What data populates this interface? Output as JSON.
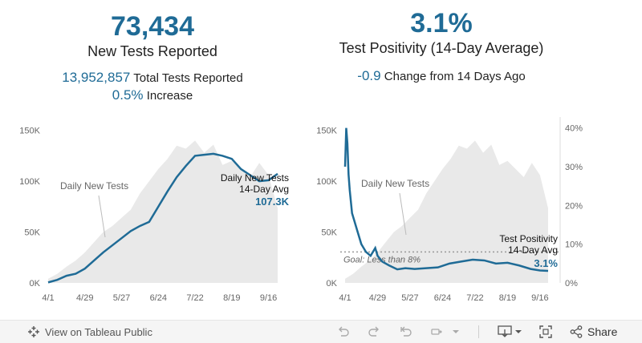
{
  "left_panel": {
    "big_number": "73,434",
    "title": "New Tests Reported",
    "total_value": "13,952,857",
    "total_label": "Total Tests Reported",
    "increase_value": "0.5%",
    "increase_label": "Increase"
  },
  "right_panel": {
    "big_number": "3.1%",
    "title": "Test Positivity (14-Day Average)",
    "change_value": "-0.9",
    "change_label": "Change from 14 Days Ago"
  },
  "chart_data": [
    {
      "type": "area",
      "x_ticks": [
        "4/1",
        "4/29",
        "5/27",
        "6/24",
        "7/22",
        "8/19",
        "9/16"
      ],
      "y_ticks": [
        "0K",
        "50K",
        "100K",
        "150K"
      ],
      "ylim": [
        0,
        160000
      ],
      "annotation": "Daily New Tests",
      "avg_label_line1": "Daily New Tests",
      "avg_label_line2": "14-Day Avg",
      "avg_value_label": "107.3K",
      "series": [
        {
          "name": "Daily New Tests",
          "x": [
            0,
            7,
            14,
            21,
            28,
            35,
            42,
            49,
            56,
            63,
            70,
            77,
            84,
            91,
            98,
            105,
            112,
            119,
            126,
            133,
            140,
            147,
            154,
            161,
            168,
            175
          ],
          "values": [
            4000,
            9000,
            16000,
            22000,
            30000,
            40000,
            50000,
            56000,
            64000,
            72000,
            88000,
            100000,
            112000,
            122000,
            135000,
            132000,
            140000,
            128000,
            136000,
            116000,
            120000,
            112000,
            104000,
            118000,
            106000,
            73434
          ]
        },
        {
          "name": "14-Day Avg",
          "x": [
            0,
            7,
            14,
            21,
            28,
            35,
            42,
            49,
            56,
            63,
            70,
            77,
            84,
            91,
            98,
            105,
            112,
            119,
            126,
            133,
            140,
            147,
            154,
            161,
            168,
            175
          ],
          "values": [
            500,
            3000,
            7000,
            9000,
            14000,
            22000,
            30000,
            37000,
            44000,
            51000,
            56000,
            60000,
            75000,
            90000,
            104000,
            115000,
            125000,
            126000,
            127000,
            125000,
            122000,
            112000,
            106000,
            100000,
            101000,
            107300
          ]
        }
      ]
    },
    {
      "type": "area",
      "x_ticks": [
        "4/1",
        "4/29",
        "5/27",
        "6/24",
        "7/22",
        "8/19",
        "9/16"
      ],
      "y_ticks": [
        "0K",
        "50K",
        "100K",
        "150K"
      ],
      "y2_ticks": [
        "0%",
        "10%",
        "20%",
        "30%",
        "40%"
      ],
      "ylim": [
        0,
        160000
      ],
      "y2lim": [
        0,
        42
      ],
      "annotation": "Daily New Tests",
      "goal_label": "Goal: Less than 8%",
      "goal_value": 8,
      "avg_label_line1": "Test Positivity",
      "avg_label_line2": "14-Day Avg",
      "avg_value_label": "3.1%",
      "series": [
        {
          "name": "Daily New Tests",
          "x": [
            0,
            7,
            14,
            21,
            28,
            35,
            42,
            49,
            56,
            63,
            70,
            77,
            84,
            91,
            98,
            105,
            112,
            119,
            126,
            133,
            140,
            147,
            154,
            161,
            168,
            175
          ],
          "values": [
            4000,
            9000,
            16000,
            22000,
            30000,
            40000,
            50000,
            56000,
            64000,
            72000,
            88000,
            100000,
            112000,
            122000,
            135000,
            132000,
            140000,
            128000,
            136000,
            116000,
            120000,
            112000,
            104000,
            118000,
            106000,
            73434
          ]
        },
        {
          "name": "Test Positivity",
          "x": [
            0,
            1,
            2,
            3,
            4,
            6,
            8,
            10,
            12,
            14,
            18,
            22,
            26,
            28,
            32,
            38,
            45,
            52,
            60,
            70,
            80,
            90,
            100,
            110,
            120,
            130,
            140,
            150,
            160,
            168,
            175
          ],
          "values": [
            30,
            40,
            36,
            28,
            24,
            18,
            16,
            14,
            12,
            10,
            8,
            7,
            9,
            7,
            5.5,
            4.5,
            3.5,
            3.8,
            3.6,
            3.8,
            4.0,
            5.0,
            5.5,
            6.0,
            5.8,
            5.0,
            5.2,
            4.5,
            3.6,
            3.2,
            3.1
          ]
        }
      ]
    }
  ],
  "toolbar": {
    "view_label": "View on Tableau Public",
    "share_label": "Share"
  }
}
